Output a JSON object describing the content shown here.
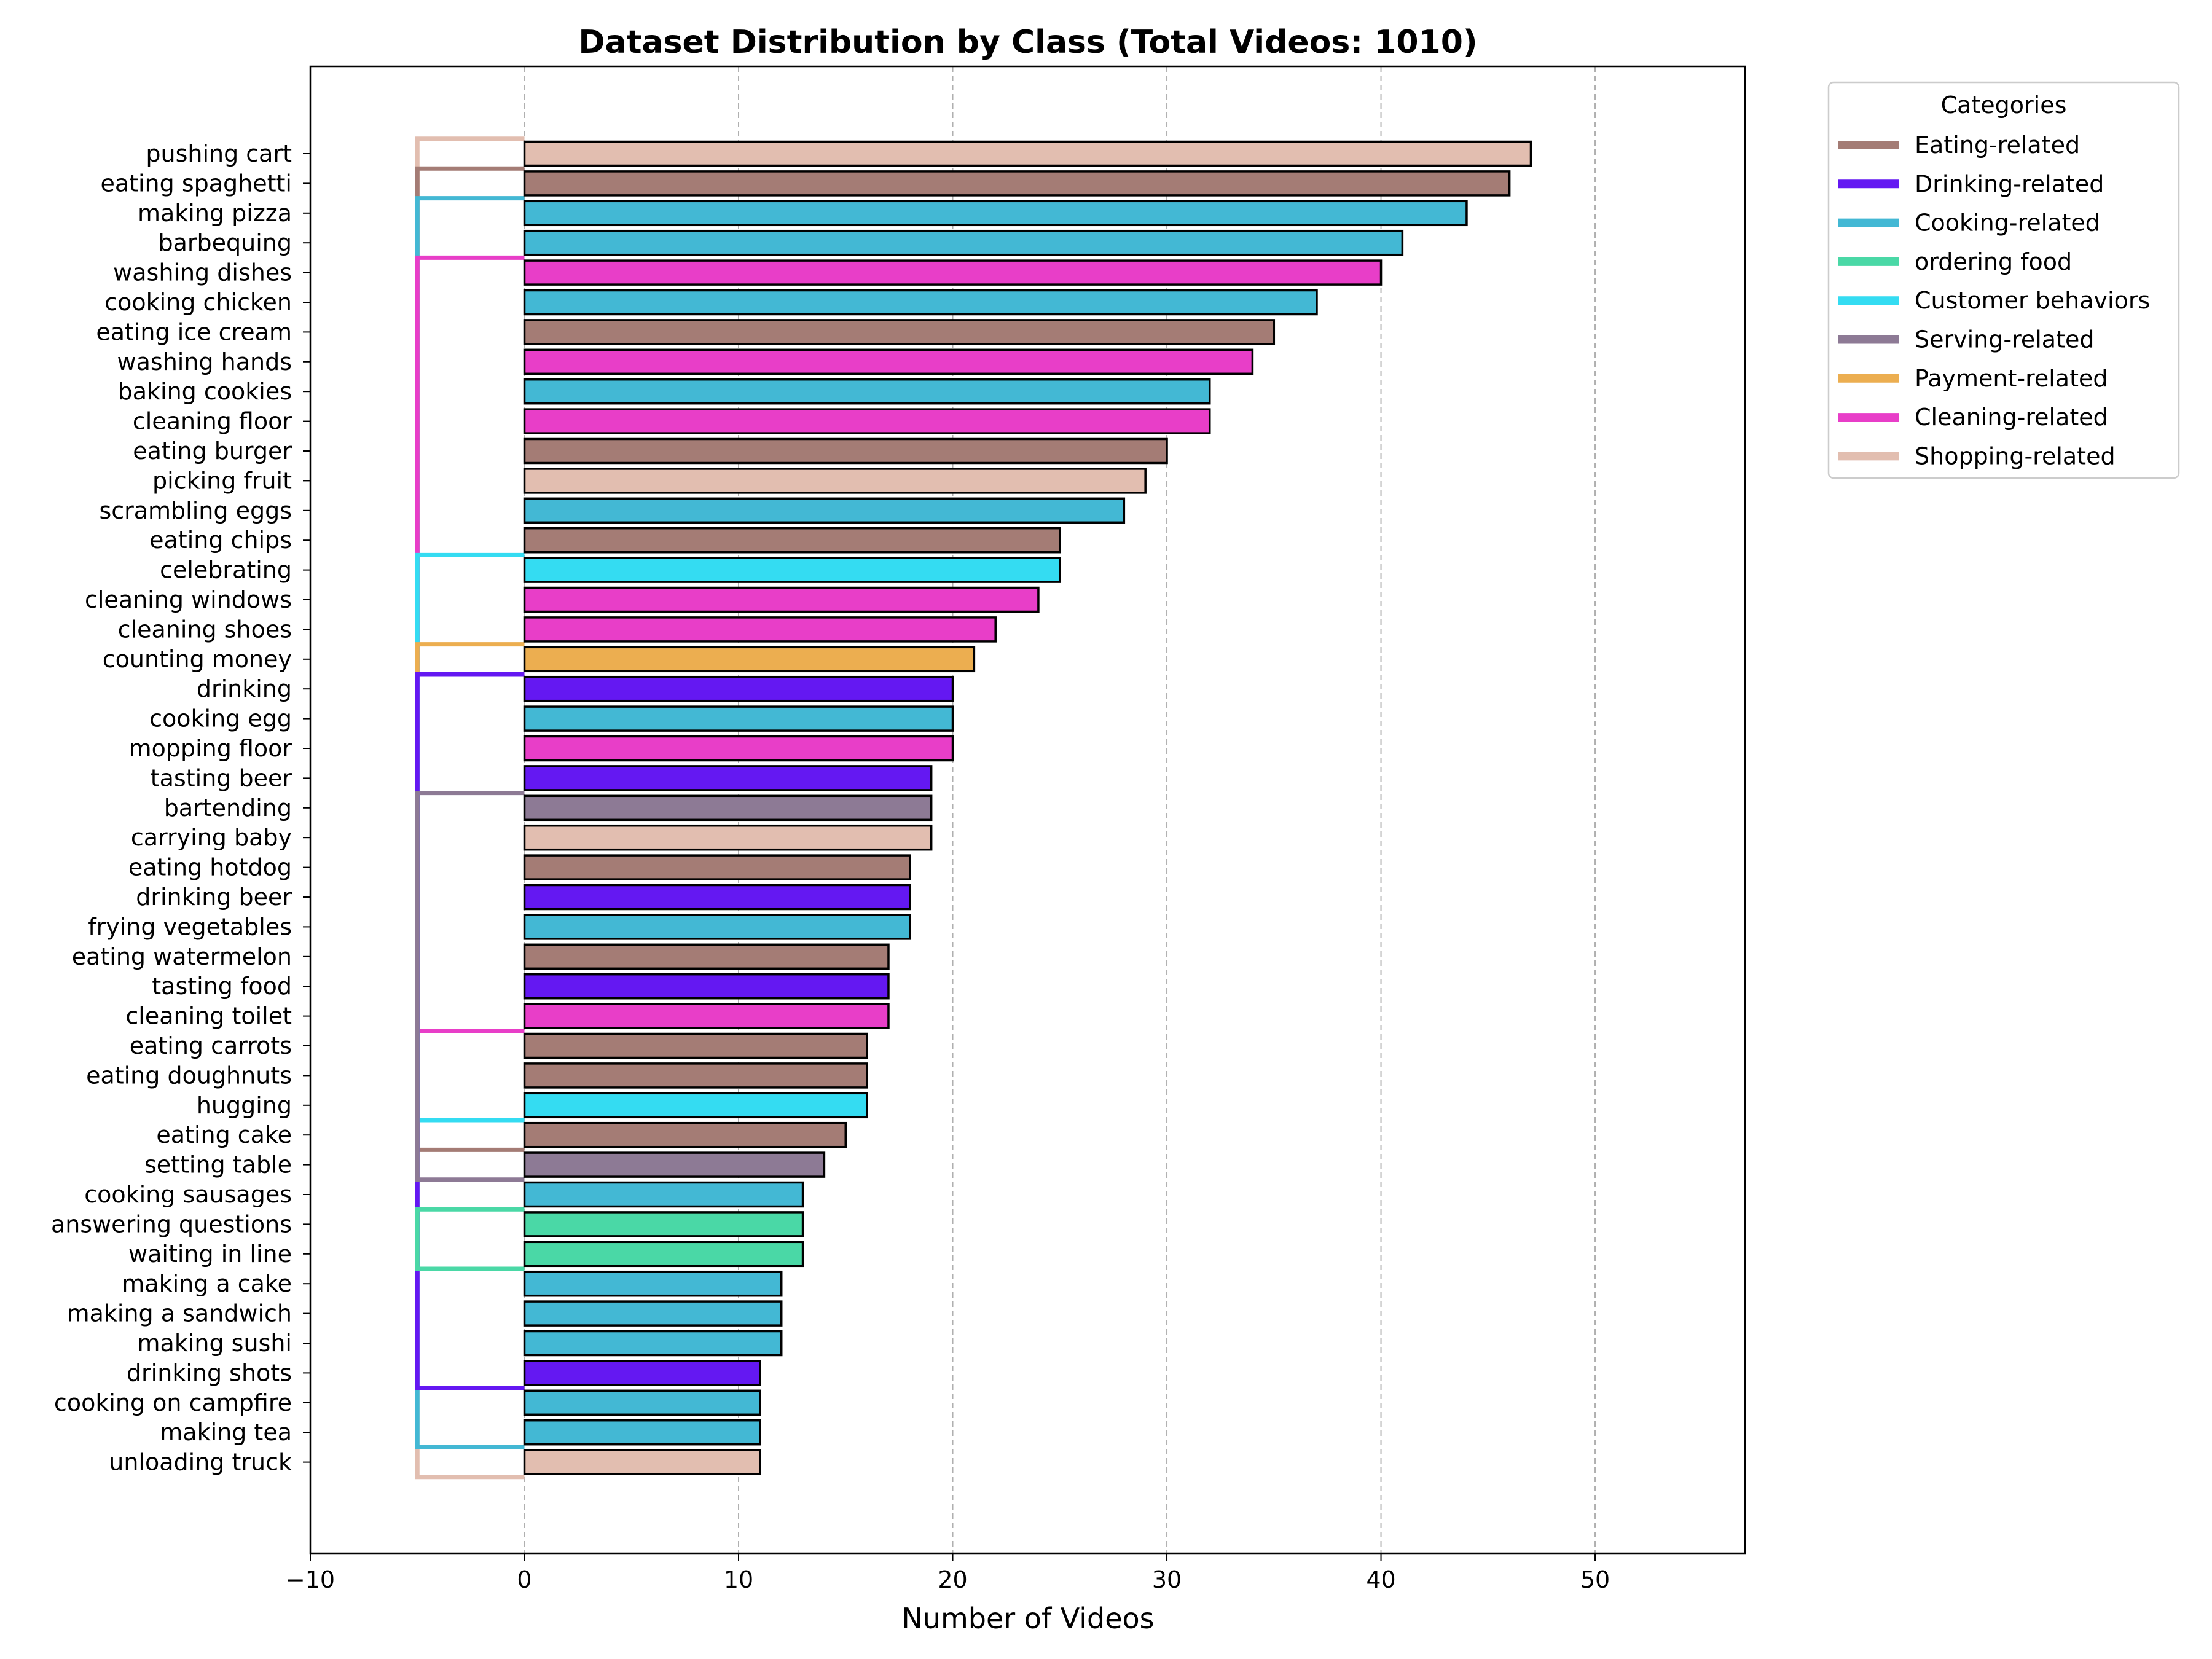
{
  "chart_data": {
    "type": "bar",
    "orientation": "horizontal",
    "title": "Dataset Distribution by Class (Total Videos: 1010)",
    "xlabel": "Number of Videos",
    "ylabel": "",
    "xlim": [
      -10,
      57
    ],
    "xticks": [
      -10,
      0,
      10,
      20,
      30,
      40,
      50
    ],
    "grid": "vertical-dashed",
    "legend": {
      "title": "Categories",
      "placement": "outside-top-right",
      "entries": [
        {
          "label": "Eating-related",
          "color": "#a47c75"
        },
        {
          "label": "Drinking-related",
          "color": "#6418f2"
        },
        {
          "label": "Cooking-related",
          "color": "#43b8d4"
        },
        {
          "label": "ordering food",
          "color": "#4ad8a6"
        },
        {
          "label": "Customer behaviors",
          "color": "#34dcf2"
        },
        {
          "label": "Serving-related",
          "color": "#8d7a95"
        },
        {
          "label": "Payment-related",
          "color": "#ecae50"
        },
        {
          "label": "Cleaning-related",
          "color": "#e83ec8"
        },
        {
          "label": "Shopping-related",
          "color": "#e2beb0"
        }
      ]
    },
    "bars": [
      {
        "label": "pushing cart",
        "value": 47,
        "color": "#e2beb0"
      },
      {
        "label": "eating spaghetti",
        "value": 46,
        "color": "#a47c75"
      },
      {
        "label": "making pizza",
        "value": 44,
        "color": "#43b8d4"
      },
      {
        "label": "barbequing",
        "value": 41,
        "color": "#43b8d4"
      },
      {
        "label": "washing dishes",
        "value": 40,
        "color": "#e83ec8"
      },
      {
        "label": "cooking chicken",
        "value": 37,
        "color": "#43b8d4"
      },
      {
        "label": "eating ice cream",
        "value": 35,
        "color": "#a47c75"
      },
      {
        "label": "washing hands",
        "value": 34,
        "color": "#e83ec8"
      },
      {
        "label": "baking cookies",
        "value": 32,
        "color": "#43b8d4"
      },
      {
        "label": "cleaning floor",
        "value": 32,
        "color": "#e83ec8"
      },
      {
        "label": "eating burger",
        "value": 30,
        "color": "#a47c75"
      },
      {
        "label": "picking fruit",
        "value": 29,
        "color": "#e2beb0"
      },
      {
        "label": "scrambling eggs",
        "value": 28,
        "color": "#43b8d4"
      },
      {
        "label": "eating chips",
        "value": 25,
        "color": "#a47c75"
      },
      {
        "label": "celebrating",
        "value": 25,
        "color": "#34dcf2"
      },
      {
        "label": "cleaning windows",
        "value": 24,
        "color": "#e83ec8"
      },
      {
        "label": "cleaning shoes",
        "value": 22,
        "color": "#e83ec8"
      },
      {
        "label": "counting money",
        "value": 21,
        "color": "#ecae50"
      },
      {
        "label": "drinking",
        "value": 20,
        "color": "#6418f2"
      },
      {
        "label": "cooking egg",
        "value": 20,
        "color": "#43b8d4"
      },
      {
        "label": "mopping floor",
        "value": 20,
        "color": "#e83ec8"
      },
      {
        "label": "tasting beer",
        "value": 19,
        "color": "#6418f2"
      },
      {
        "label": "bartending",
        "value": 19,
        "color": "#8d7a95"
      },
      {
        "label": "carrying baby",
        "value": 19,
        "color": "#e2beb0"
      },
      {
        "label": "eating hotdog",
        "value": 18,
        "color": "#a47c75"
      },
      {
        "label": "drinking beer",
        "value": 18,
        "color": "#6418f2"
      },
      {
        "label": "frying vegetables",
        "value": 18,
        "color": "#43b8d4"
      },
      {
        "label": "eating watermelon",
        "value": 17,
        "color": "#a47c75"
      },
      {
        "label": "tasting food",
        "value": 17,
        "color": "#6418f2"
      },
      {
        "label": "cleaning toilet",
        "value": 17,
        "color": "#e83ec8"
      },
      {
        "label": "eating carrots",
        "value": 16,
        "color": "#a47c75"
      },
      {
        "label": "eating doughnuts",
        "value": 16,
        "color": "#a47c75"
      },
      {
        "label": "hugging",
        "value": 16,
        "color": "#34dcf2"
      },
      {
        "label": "eating cake",
        "value": 15,
        "color": "#a47c75"
      },
      {
        "label": "setting table",
        "value": 14,
        "color": "#8d7a95"
      },
      {
        "label": "cooking sausages",
        "value": 13,
        "color": "#43b8d4"
      },
      {
        "label": "answering questions",
        "value": 13,
        "color": "#4ad8a6"
      },
      {
        "label": "waiting in line",
        "value": 13,
        "color": "#4ad8a6"
      },
      {
        "label": "making a cake",
        "value": 12,
        "color": "#43b8d4"
      },
      {
        "label": "making a sandwich",
        "value": 12,
        "color": "#43b8d4"
      },
      {
        "label": "making sushi",
        "value": 12,
        "color": "#43b8d4"
      },
      {
        "label": "drinking shots",
        "value": 11,
        "color": "#6418f2"
      },
      {
        "label": "cooking on campfire",
        "value": 11,
        "color": "#43b8d4"
      },
      {
        "label": "making tea",
        "value": 11,
        "color": "#43b8d4"
      },
      {
        "label": "unloading truck",
        "value": 11,
        "color": "#e2beb0"
      }
    ],
    "brackets": [
      {
        "color": "#e2beb0",
        "start": 0,
        "end": 44
      },
      {
        "color": "#a47c75",
        "start": 1,
        "end": 33
      },
      {
        "color": "#43b8d4",
        "start": 2,
        "end": 43
      },
      {
        "color": "#e83ec8",
        "start": 4,
        "end": 29
      },
      {
        "color": "#34dcf2",
        "start": 14,
        "end": 32
      },
      {
        "color": "#ecae50",
        "start": 17,
        "end": 17
      },
      {
        "color": "#6418f2",
        "start": 18,
        "end": 41
      },
      {
        "color": "#8d7a95",
        "start": 22,
        "end": 34
      },
      {
        "color": "#4ad8a6",
        "start": 36,
        "end": 37
      }
    ]
  }
}
